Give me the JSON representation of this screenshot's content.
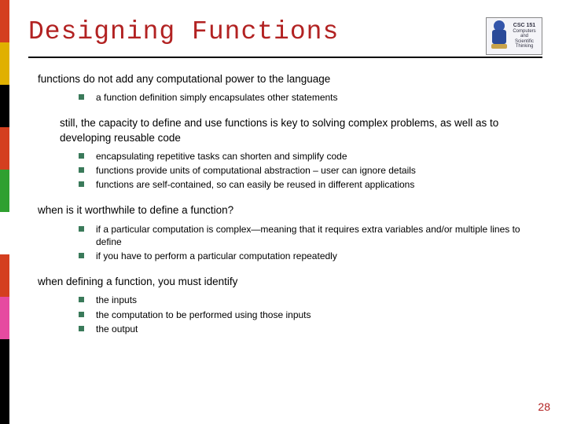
{
  "colorbar": [
    "#d43f1f",
    "#e0b000",
    "#000000",
    "#d43f1f",
    "#2fa030",
    "#ffffff",
    "#d43f1f",
    "#e64aa0",
    "#000000",
    "#000000"
  ],
  "title": "Designing Functions",
  "logo": {
    "line1": "CSC 151",
    "line2": "Computers",
    "line3": "and",
    "line4": "Scientific",
    "line5": "Thinking"
  },
  "sections": [
    {
      "text": "functions do not add any computational power to the language",
      "indent": false,
      "bullets": [
        "a function definition simply encapsulates other statements"
      ]
    },
    {
      "text": "still, the capacity to define and use functions is key to solving complex problems, as well as to developing reusable code",
      "indent": true,
      "bullets": [
        "encapsulating repetitive tasks can shorten and simplify code",
        "functions provide units of computational abstraction – user can ignore details",
        "functions are self-contained, so can easily be reused in different applications"
      ]
    },
    {
      "text": "when is it worthwhile to define a function?",
      "indent": false,
      "bullets": [
        "if a particular computation is complex—meaning that it requires extra variables and/or multiple lines to define",
        "if you have to perform a particular computation repeatedly"
      ]
    },
    {
      "text": "when defining a function, you must identify",
      "indent": false,
      "bullets": [
        "the inputs",
        "the computation to be performed using those inputs",
        "the output"
      ]
    }
  ],
  "page_number": "28"
}
